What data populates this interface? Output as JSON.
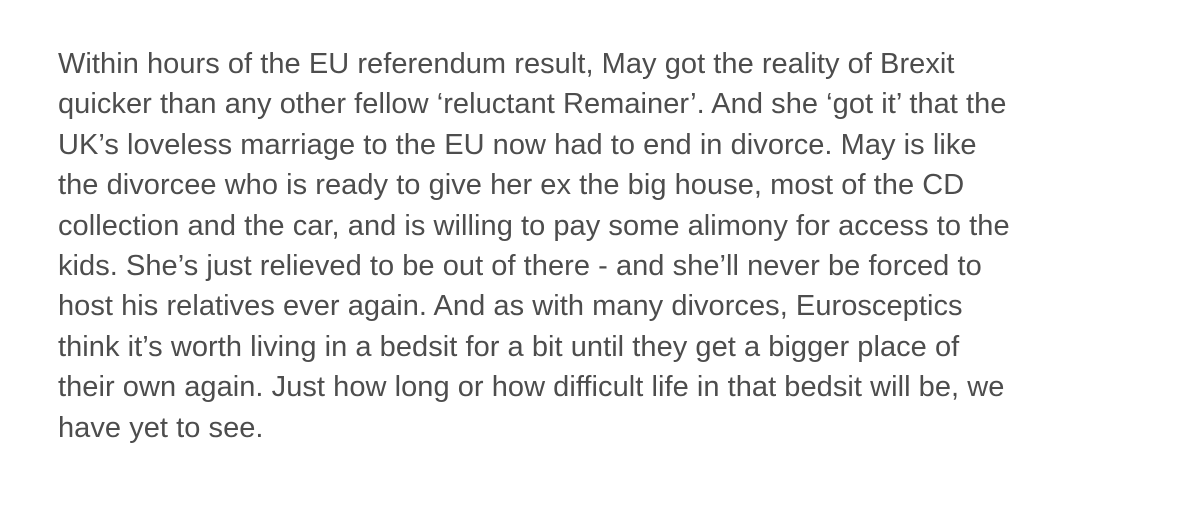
{
  "paragraph": {
    "lines": [
      "Within hours of the EU referendum result, May got the reality of Brexit",
      "quicker than any other fellow ‘reluctant Remainer’. And she ‘got it’ that the",
      "UK’s loveless marriage to the EU now had to end in divorce. May is like",
      "the divorcee who is ready to give her ex the big house, most of the CD",
      "collection and the car, and is willing to pay some alimony for access to the",
      "kids. She’s just relieved to be out of there - and she’ll never be forced to",
      "host his relatives ever again. And as with many divorces, Eurosceptics",
      "think it’s worth living in a bedsit for a bit until they get a bigger place of",
      "their own again. Just how long or how difficult life in that bedsit will be, we",
      "have yet to see."
    ]
  },
  "colors": {
    "text": "#4d4d4d",
    "background": "#ffffff"
  }
}
